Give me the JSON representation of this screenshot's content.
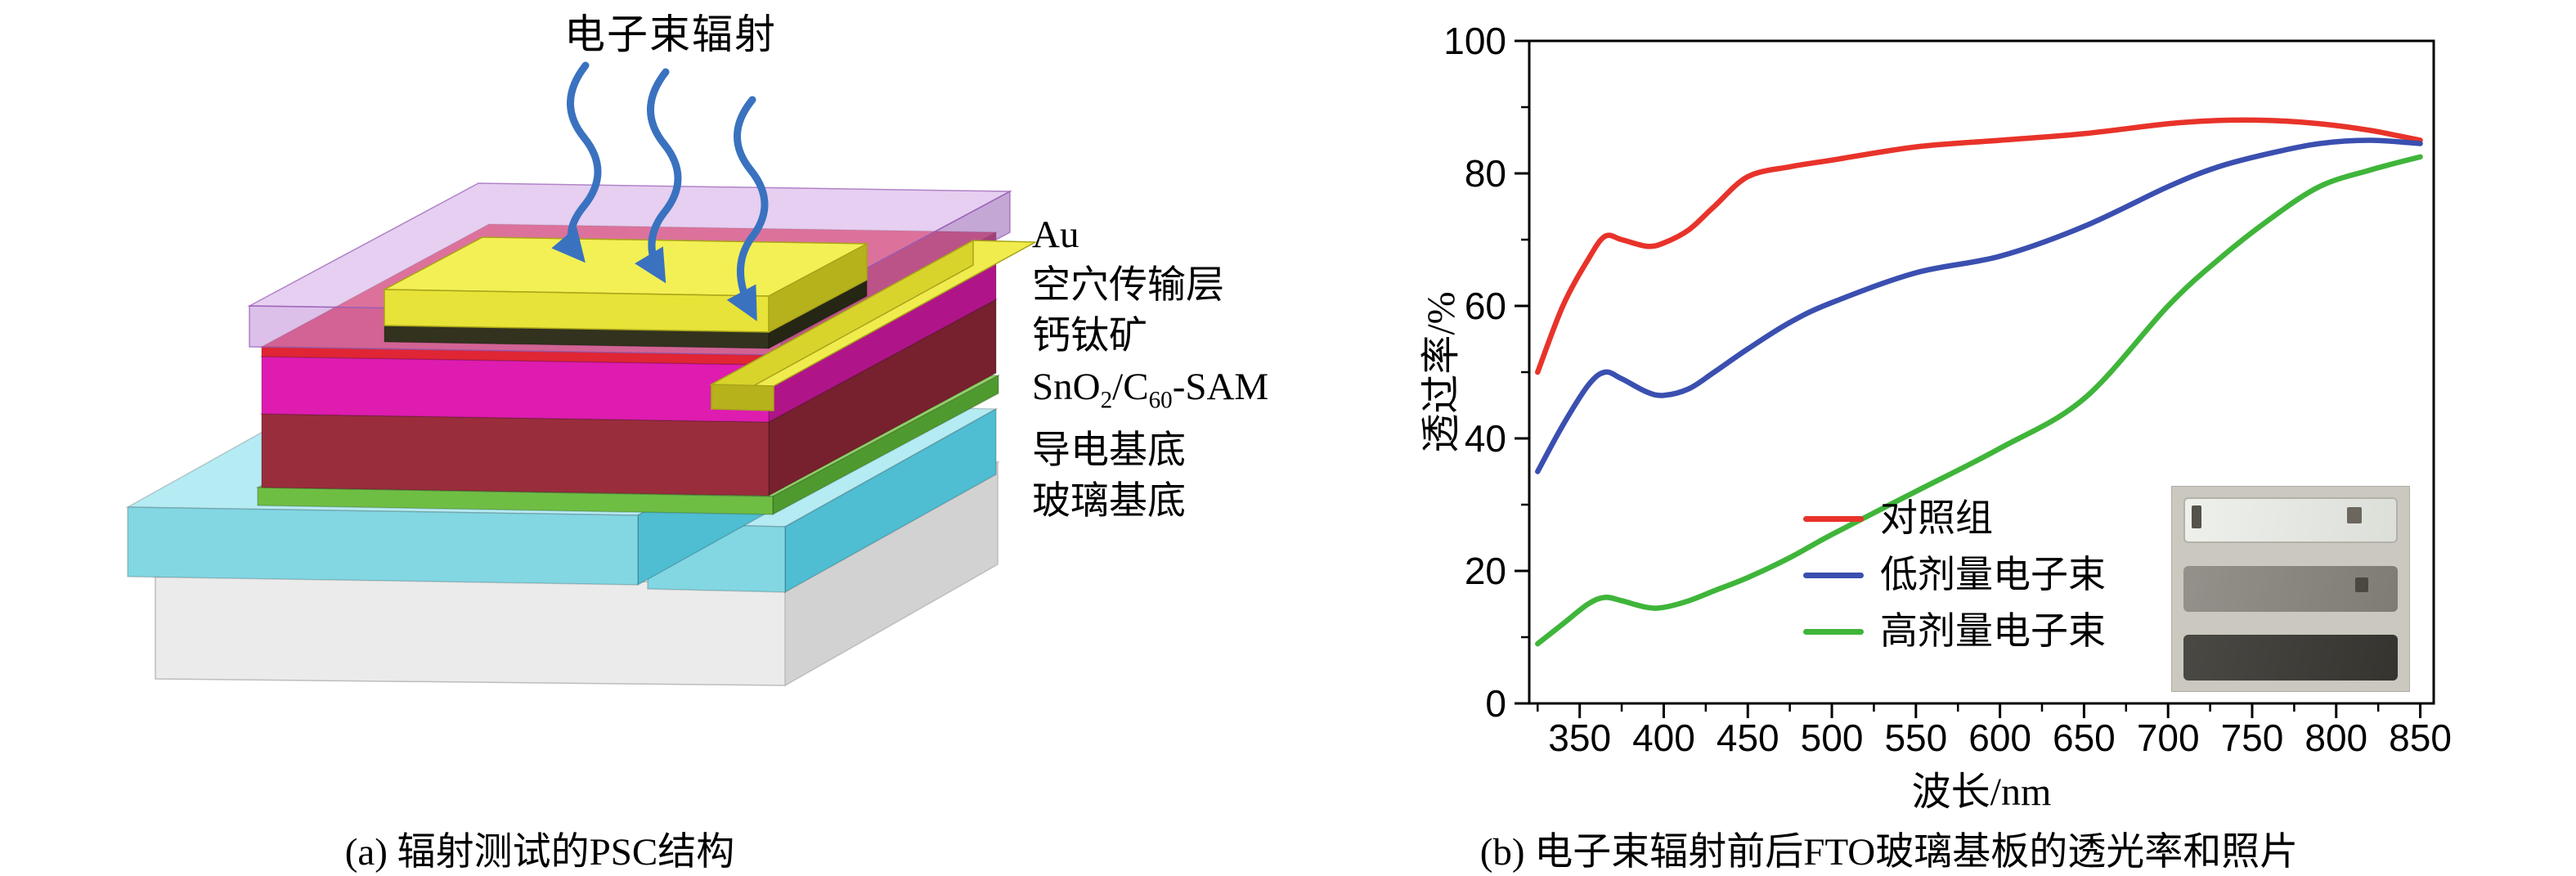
{
  "panel_a": {
    "beam_label": "电子束辐射",
    "labels": {
      "au": "Au",
      "htl": "空穴传输层",
      "perovskite": "钙钛矿",
      "etl": {
        "p1": "SnO",
        "s1": "2",
        "p2": "/C",
        "s2": "60",
        "p3": "-SAM"
      },
      "conductive": "导电基底",
      "glass": "玻璃基底"
    },
    "caption": "(a) 辐射测试的PSC结构"
  },
  "panel_b": {
    "caption": "(b) 电子束辐射前后FTO玻璃基板的透光率和照片"
  },
  "chart_data": {
    "type": "line",
    "title": "",
    "xlabel": "波长/nm",
    "ylabel": "透过率/%",
    "xlim": [
      320,
      858
    ],
    "ylim": [
      0,
      100
    ],
    "x_ticks": [
      350,
      400,
      450,
      500,
      550,
      600,
      650,
      700,
      750,
      800,
      850
    ],
    "y_ticks": [
      0,
      20,
      40,
      60,
      80,
      100
    ],
    "x_minor_step": 25,
    "y_minor_step": 10,
    "grid": false,
    "legend_position": "inside lower-left",
    "x": [
      325,
      340,
      355,
      365,
      375,
      390,
      400,
      415,
      430,
      450,
      475,
      500,
      550,
      600,
      650,
      700,
      730,
      760,
      790,
      820,
      850
    ],
    "series": [
      {
        "name": "对照组",
        "color": "#e8332a",
        "values": [
          50,
          60,
          67,
          70.5,
          70,
          69,
          69.5,
          71.5,
          75,
          79.5,
          81,
          82,
          84,
          85,
          86,
          87.5,
          88,
          88,
          87.5,
          86.5,
          85
        ]
      },
      {
        "name": "低剂量电子束",
        "color": "#3a4fb0",
        "values": [
          35,
          42,
          48,
          50,
          49,
          47,
          46.5,
          47.5,
          50,
          53.5,
          57.5,
          60.5,
          65,
          67.5,
          72,
          78,
          81,
          83,
          84.5,
          85,
          84.5
        ]
      },
      {
        "name": "高剂量电子束",
        "color": "#3fb53a",
        "values": [
          9,
          12,
          15,
          16,
          15.5,
          14.5,
          14.5,
          15.5,
          17,
          19,
          22,
          25.5,
          32,
          38.5,
          46,
          60,
          67,
          73,
          78,
          80.5,
          82.5
        ]
      }
    ]
  }
}
